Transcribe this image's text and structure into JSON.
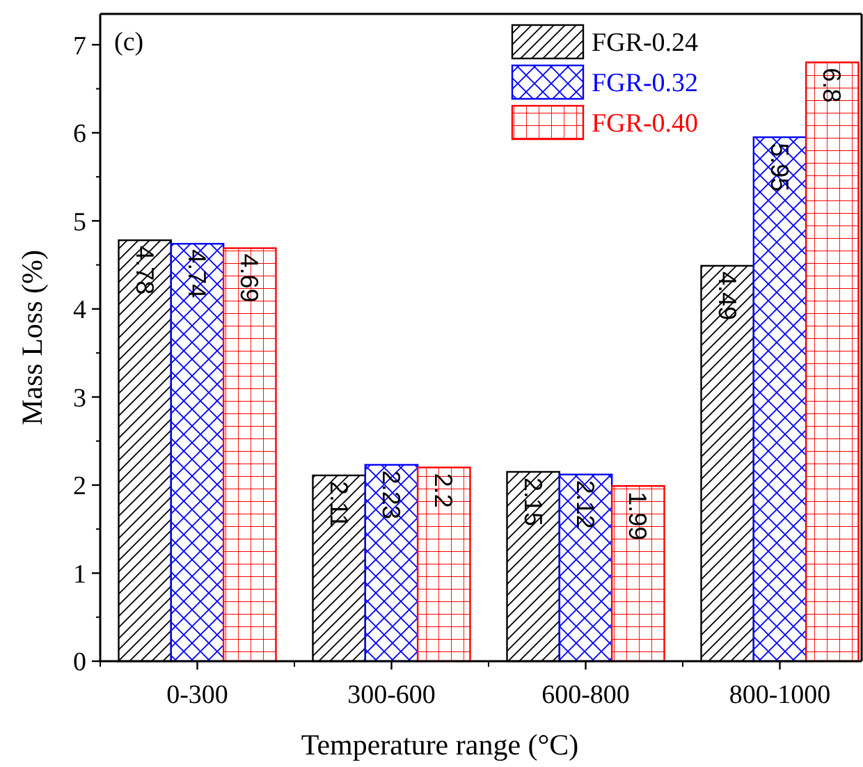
{
  "chart_data": {
    "type": "bar",
    "xlabel": "Temperature range (°C)",
    "ylabel": "Mass Loss (%)",
    "annotations": [
      "(c)"
    ],
    "categories": [
      "0-300",
      "300-600",
      "600-800",
      "800-1000"
    ],
    "series": [
      {
        "name": "FGR-0.24",
        "color": "#000000",
        "values": [
          4.78,
          2.11,
          2.15,
          4.49
        ]
      },
      {
        "name": "FGR-0.32",
        "color": "#0000ff",
        "values": [
          4.74,
          2.23,
          2.12,
          5.95
        ]
      },
      {
        "name": "FGR-0.40",
        "color": "#ff0000",
        "values": [
          4.69,
          2.2,
          1.99,
          6.8
        ]
      }
    ],
    "ylim": [
      0,
      7.35
    ],
    "yticks": [
      0,
      1,
      2,
      3,
      4,
      5,
      6,
      7
    ],
    "data_labels": true,
    "legend": "top right",
    "grid": false
  }
}
